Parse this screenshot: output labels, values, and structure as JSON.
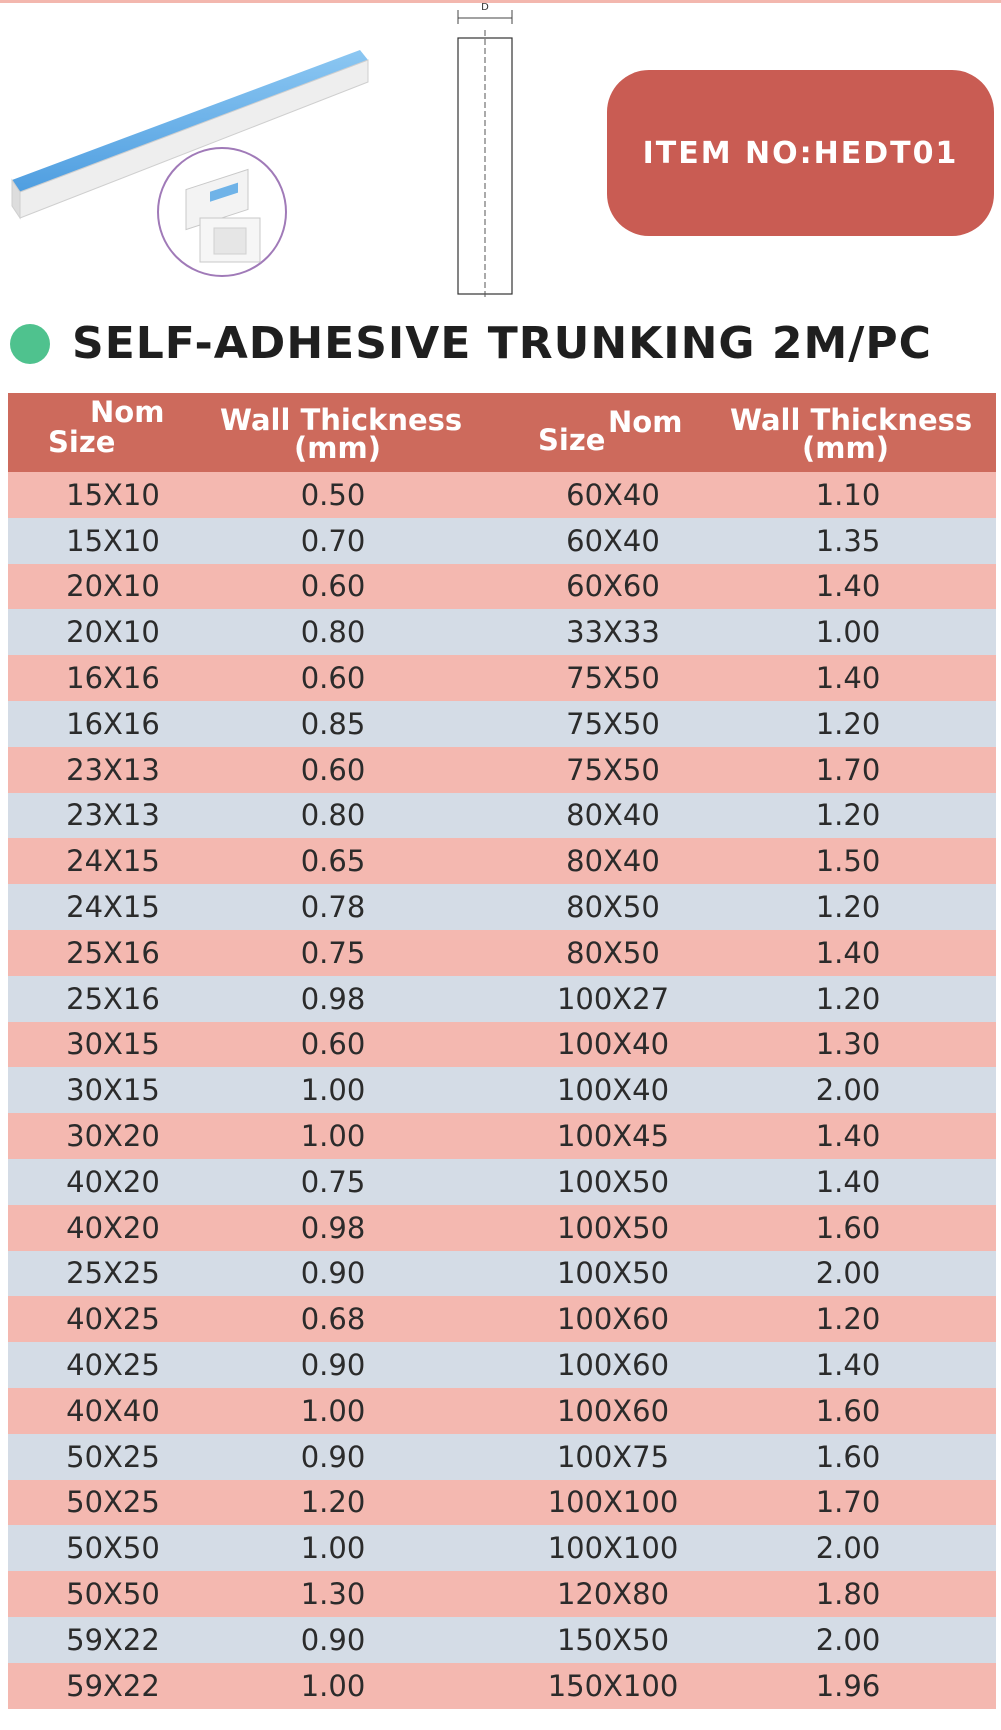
{
  "page": {
    "title": "SELF-ADHESIVE TRUNKING 2M/PC",
    "item_no": "ITEM NO:HEDT01",
    "drawing_label": "D",
    "colors": {
      "badge": "#c95c53",
      "header": "#cd6a5c",
      "row_pink": "#f4b8b0",
      "row_blue": "#d4dce6",
      "dot": "#4fc28e",
      "tape": "#6fb3e8"
    }
  },
  "table": {
    "headers": {
      "nom_size_left_top": "Nom",
      "nom_size_left_bottom": "Size",
      "wall_left_top": "Wall Thickness",
      "wall_left_bottom": "(mm)",
      "nom_size_right_top": "Nom",
      "nom_size_right_bottom": "Size",
      "wall_right_top": "Wall Thickness",
      "wall_right_bottom": "(mm)"
    },
    "rows": [
      [
        "15X10",
        "0.50",
        "60X40",
        "1.10"
      ],
      [
        "15X10",
        "0.70",
        "60X40",
        "1.35"
      ],
      [
        "20X10",
        "0.60",
        "60X60",
        "1.40"
      ],
      [
        "20X10",
        "0.80",
        "33X33",
        "1.00"
      ],
      [
        "16X16",
        "0.60",
        "75X50",
        "1.40"
      ],
      [
        "16X16",
        "0.85",
        "75X50",
        "1.20"
      ],
      [
        "23X13",
        "0.60",
        "75X50",
        "1.70"
      ],
      [
        "23X13",
        "0.80",
        "80X40",
        "1.20"
      ],
      [
        "24X15",
        "0.65",
        "80X40",
        "1.50"
      ],
      [
        "24X15",
        "0.78",
        "80X50",
        "1.20"
      ],
      [
        "25X16",
        "0.75",
        "80X50",
        "1.40"
      ],
      [
        "25X16",
        "0.98",
        "100X27",
        "1.20"
      ],
      [
        "30X15",
        "0.60",
        "100X40",
        "1.30"
      ],
      [
        "30X15",
        "1.00",
        "100X40",
        "2.00"
      ],
      [
        "30X20",
        "1.00",
        "100X45",
        "1.40"
      ],
      [
        "40X20",
        "0.75",
        "100X50",
        "1.40"
      ],
      [
        "40X20",
        "0.98",
        "100X50",
        "1.60"
      ],
      [
        "25X25",
        "0.90",
        "100X50",
        "2.00"
      ],
      [
        "40X25",
        "0.68",
        "100X60",
        "1.20"
      ],
      [
        "40X25",
        "0.90",
        "100X60",
        "1.40"
      ],
      [
        "40X40",
        "1.00",
        "100X60",
        "1.60"
      ],
      [
        "50X25",
        "0.90",
        "100X75",
        "1.60"
      ],
      [
        "50X25",
        "1.20",
        "100X100",
        "1.70"
      ],
      [
        "50X50",
        "1.00",
        "100X100",
        "2.00"
      ],
      [
        "50X50",
        "1.30",
        "120X80",
        "1.80"
      ],
      [
        "59X22",
        "0.90",
        "150X50",
        "2.00"
      ],
      [
        "59X22",
        "1.00",
        "150X100",
        "1.96"
      ]
    ]
  }
}
